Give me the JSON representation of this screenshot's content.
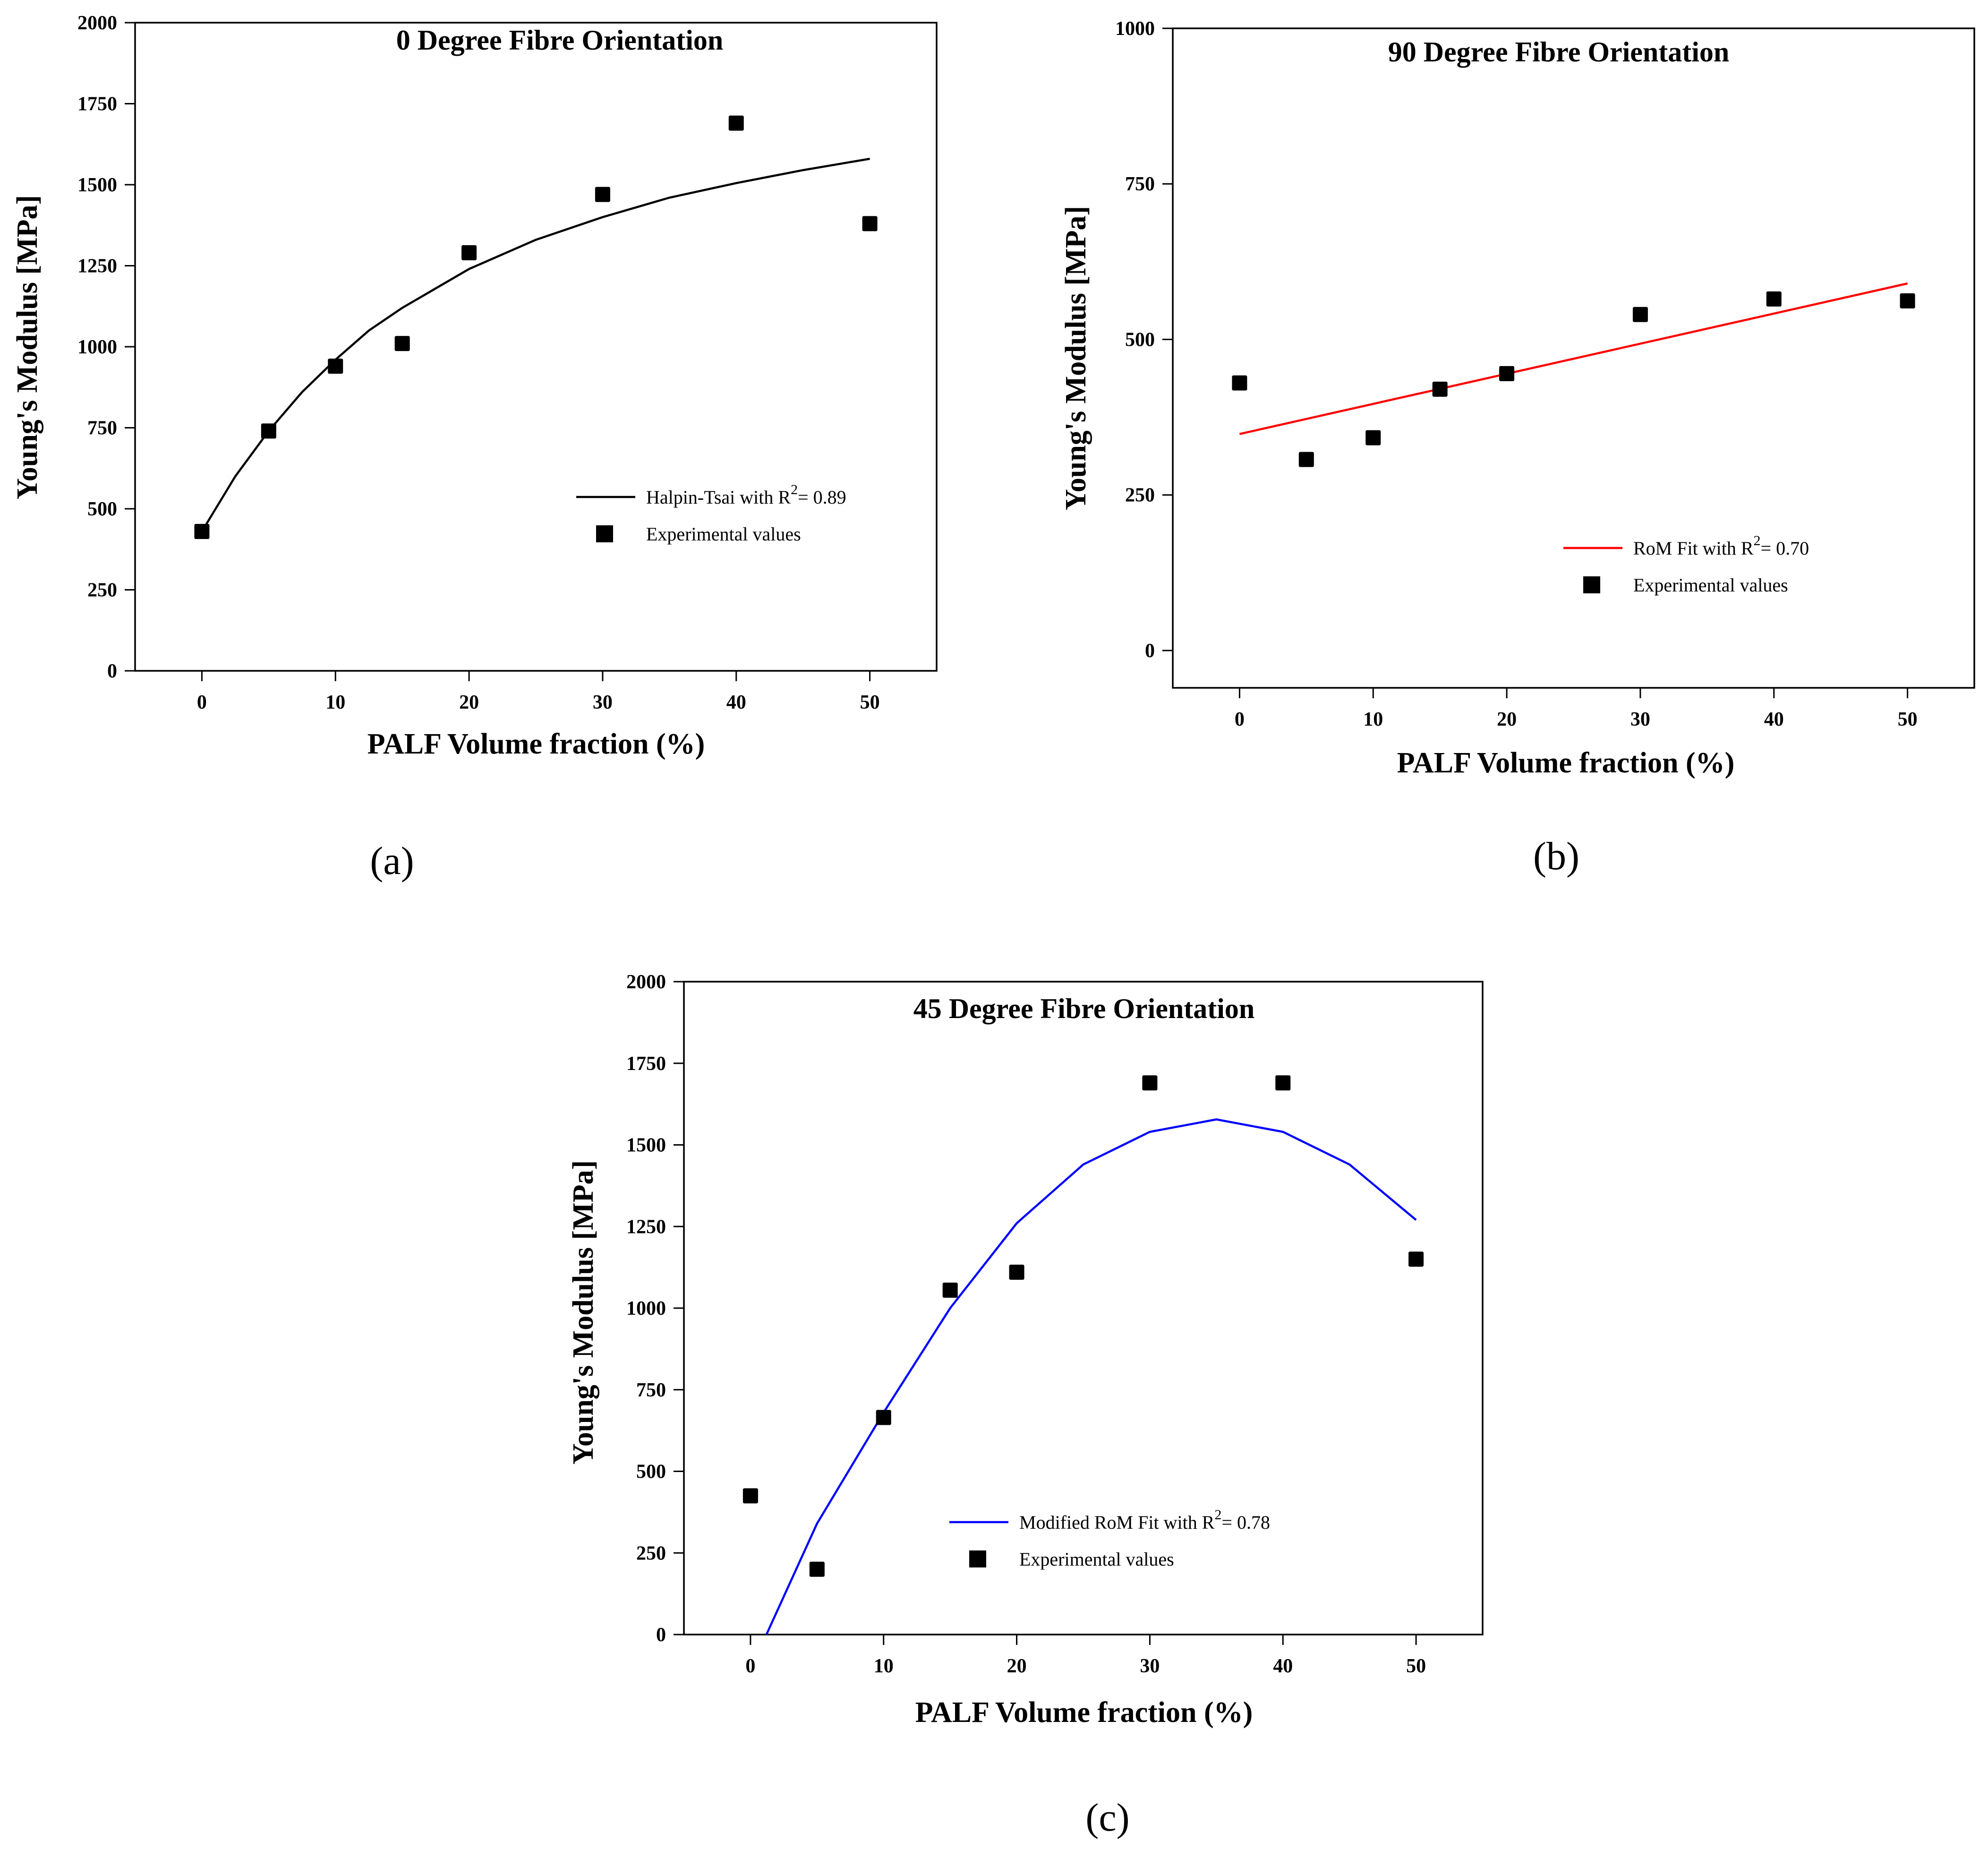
{
  "chart_data": [
    {
      "type": "scatter",
      "panel_label": "(a)",
      "title": "0 Degree Fibre Orientation",
      "xlabel": "PALF Volume fraction (%)",
      "ylabel": "Young's Modulus [MPa]",
      "xlim": [
        -5,
        55
      ],
      "ylim": [
        0,
        2000
      ],
      "xticks": [
        0,
        10,
        20,
        30,
        40,
        50
      ],
      "yticks": [
        0,
        250,
        500,
        750,
        1000,
        1250,
        1500,
        1750,
        2000
      ],
      "grid": false,
      "legend_position": "lower-right",
      "fit": {
        "kind": "Halpin-Tsai",
        "color": "#000000",
        "legend_prefix": "Halpin-Tsai with R",
        "legend_suffix": "= 0.89",
        "x": [
          0,
          2.5,
          5,
          7.5,
          10,
          12.5,
          15,
          17.5,
          20,
          25,
          30,
          35,
          40,
          45,
          50
        ],
        "y": [
          430,
          600,
          740,
          860,
          960,
          1050,
          1120,
          1180,
          1240,
          1330,
          1400,
          1460,
          1505,
          1545,
          1580
        ]
      },
      "experimental": {
        "legend_label": "Experimental values",
        "x": [
          0,
          5,
          10,
          15,
          20,
          30,
          40,
          50
        ],
        "y": [
          430,
          740,
          940,
          1010,
          1290,
          1470,
          1690,
          1380
        ]
      }
    },
    {
      "type": "scatter",
      "panel_label": "(b)",
      "title": "90 Degree Fibre Orientation",
      "xlabel": "PALF Volume fraction (%)",
      "ylabel": "Young's Modulus [MPa]",
      "xlim": [
        -5,
        55
      ],
      "ylim": [
        -60,
        1000
      ],
      "xticks": [
        0,
        10,
        20,
        30,
        40,
        50
      ],
      "yticks": [
        0,
        250,
        500,
        750,
        1000
      ],
      "grid": false,
      "legend_position": "lower-right",
      "fit": {
        "kind": "RoM",
        "color": "#ff0000",
        "legend_prefix": "RoM Fit with R",
        "legend_suffix": "= 0.70",
        "x": [
          0,
          50
        ],
        "y": [
          348,
          590
        ]
      },
      "experimental": {
        "legend_label": "Experimental values",
        "x": [
          0,
          5,
          10,
          15,
          20,
          30,
          40,
          50
        ],
        "y": [
          430,
          307,
          342,
          420,
          445,
          540,
          565,
          562
        ]
      }
    },
    {
      "type": "scatter",
      "panel_label": "(c)",
      "title": "45 Degree Fibre Orientation",
      "xlabel": "PALF Volume fraction (%)",
      "ylabel": "Young's Modulus [MPa]",
      "xlim": [
        -5,
        55
      ],
      "ylim": [
        0,
        2000
      ],
      "xticks": [
        0,
        10,
        20,
        30,
        40,
        50
      ],
      "yticks": [
        0,
        250,
        500,
        750,
        1000,
        1250,
        1500,
        1750,
        2000
      ],
      "grid": false,
      "legend_position": "lower-right",
      "fit": {
        "kind": "Modified RoM",
        "color": "#0000ff",
        "legend_prefix": "Modified RoM Fit with R",
        "legend_suffix": "= 0.78",
        "x": [
          1.2,
          5,
          10,
          15,
          20,
          25,
          30,
          35,
          40,
          45,
          50
        ],
        "y": [
          0,
          340,
          680,
          1000,
          1260,
          1440,
          1540,
          1578,
          1540,
          1440,
          1270
        ]
      },
      "experimental": {
        "legend_label": "Experimental values",
        "x": [
          0,
          5,
          10,
          15,
          20,
          30,
          40,
          50
        ],
        "y": [
          425,
          200,
          665,
          1055,
          1110,
          1690,
          1690,
          1150
        ]
      }
    }
  ]
}
